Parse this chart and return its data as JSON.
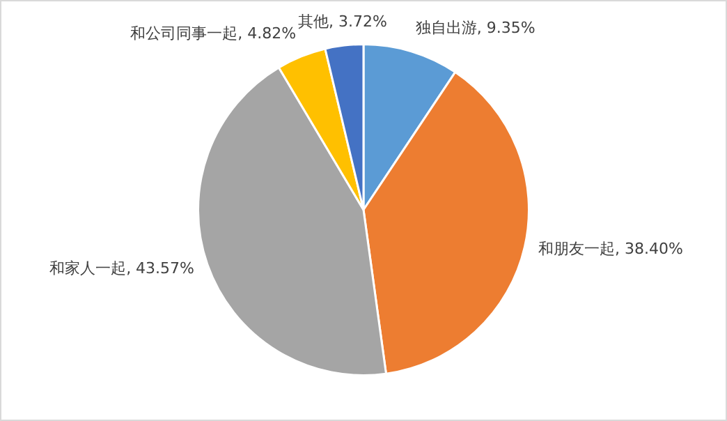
{
  "chart_data": {
    "type": "pie",
    "categories": [
      "独自出游",
      "和朋友一起",
      "和家人一起",
      "和公司同事一起",
      "其他"
    ],
    "values": [
      9.35,
      38.4,
      43.57,
      4.82,
      3.72
    ],
    "value_labels": [
      "9.35%",
      "38.40%",
      "43.57%",
      "4.82%",
      "3.72%"
    ],
    "colors": [
      "#5b9bd5",
      "#ed7d31",
      "#a5a5a5",
      "#ffc000",
      "#4472c4"
    ],
    "legend": false
  }
}
